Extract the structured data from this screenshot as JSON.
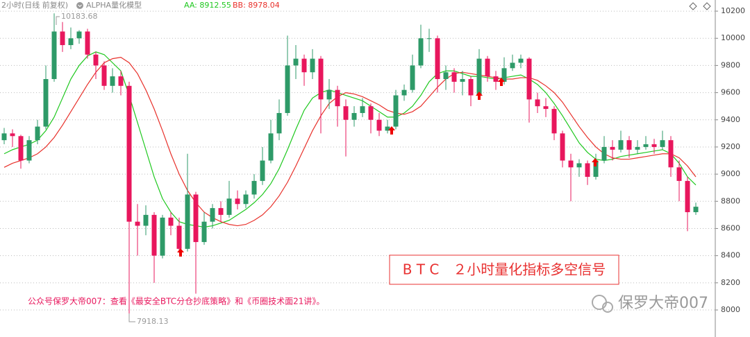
{
  "chart_data": {
    "type": "candlestick",
    "title": "2小时(日线 前复权)",
    "indicator": "ALPHA量化模型",
    "ylim": [
      7801,
      10282
    ],
    "yticks": [
      8000,
      8200,
      8400,
      8600,
      8800,
      9000,
      9200,
      9400,
      9600,
      9800,
      10000,
      10200
    ],
    "grid": true,
    "up_color": "#2e9a68",
    "down_color": "#e8175d",
    "open": [
      9250,
      9300,
      9280,
      9100,
      9250,
      9350,
      9700,
      10050,
      9950,
      10000,
      10050,
      9880,
      9800,
      9650,
      9720,
      9650,
      8650,
      8620,
      8700,
      8400,
      8680,
      8620,
      8450,
      8850,
      8500,
      8650,
      8750,
      8700,
      8820,
      8780,
      8850,
      8950,
      9100,
      9300,
      9450,
      9800,
      9850,
      9750,
      9850,
      9550,
      9620,
      9500,
      9400,
      9450,
      9500,
      9400,
      9320,
      9350,
      9580,
      9620,
      9800,
      10000,
      10000,
      9700,
      9750,
      9680,
      9700,
      9580,
      9850,
      9720,
      9680,
      9780,
      9820,
      9850,
      9550,
      9500,
      9480,
      9300,
      9100,
      9050,
      9080,
      8980,
      9100,
      9200,
      9180,
      9250,
      9180,
      9200,
      9220,
      9200,
      9250,
      9050,
      8950,
      8720
    ],
    "high": [
      9340,
      9330,
      9290,
      9280,
      9400,
      9800,
      10183.68,
      10120,
      10080,
      10060,
      10070,
      9900,
      9830,
      9780,
      9760,
      9680,
      8780,
      8770,
      8720,
      8700,
      8720,
      8680,
      9150,
      8870,
      8720,
      8780,
      8800,
      8950,
      8880,
      8880,
      9000,
      9200,
      9400,
      9550,
      10020,
      9950,
      9880,
      9920,
      9870,
      9700,
      9650,
      9550,
      9500,
      9560,
      9520,
      9450,
      9400,
      9620,
      9660,
      9880,
      10100,
      10070,
      10020,
      9800,
      9780,
      9760,
      9720,
      9920,
      9870,
      9760,
      9860,
      9880,
      9880,
      9860,
      9600,
      9560,
      9500,
      9320,
      9150,
      9110,
      9100,
      9150,
      9280,
      9250,
      9320,
      9280,
      9250,
      9280,
      9260,
      9320,
      9280,
      9100,
      8980,
      8790
    ],
    "low": [
      9220,
      9200,
      9040,
      9080,
      9220,
      9330,
      9680,
      9900,
      9920,
      9960,
      9850,
      9700,
      9620,
      9600,
      9580,
      7918.13,
      8400,
      8550,
      8200,
      8380,
      8550,
      8420,
      8430,
      8120,
      8480,
      8600,
      8650,
      8680,
      8740,
      8750,
      8820,
      8920,
      9080,
      9250,
      9430,
      9700,
      9650,
      9700,
      9300,
      9480,
      9350,
      9130,
      9350,
      9420,
      9300,
      9280,
      9300,
      9330,
      9540,
      9600,
      9780,
      9900,
      9600,
      9620,
      9600,
      9580,
      9500,
      9560,
      9680,
      9620,
      9660,
      9760,
      9780,
      9380,
      9450,
      9420,
      9250,
      9050,
      8800,
      8980,
      8920,
      8960,
      9080,
      9100,
      9160,
      9120,
      9150,
      9180,
      9150,
      9180,
      8980,
      8800,
      8580,
      8700
    ],
    "close": [
      9300,
      9280,
      9100,
      9250,
      9350,
      9700,
      10050,
      9950,
      10000,
      10050,
      9880,
      9800,
      9650,
      9720,
      9650,
      8650,
      8620,
      8700,
      8400,
      8680,
      8620,
      8450,
      8850,
      8500,
      8650,
      8750,
      8700,
      8820,
      8780,
      8850,
      8950,
      9100,
      9300,
      9450,
      9800,
      9850,
      9750,
      9850,
      9550,
      9620,
      9500,
      9400,
      9450,
      9500,
      9400,
      9320,
      9350,
      9580,
      9620,
      9800,
      10000,
      10000,
      9700,
      9750,
      9680,
      9700,
      9580,
      9850,
      9720,
      9680,
      9780,
      9820,
      9850,
      9550,
      9500,
      9480,
      9300,
      9100,
      9050,
      9080,
      8980,
      9100,
      9200,
      9180,
      9250,
      9180,
      9200,
      9220,
      9200,
      9250,
      9050,
      8950,
      8720,
      8760
    ],
    "series": [
      {
        "name": "AA: 8912.55",
        "color": "#1ec81e",
        "values": [
          9150,
          9180,
          9200,
          9220,
          9250,
          9320,
          9420,
          9560,
          9700,
          9800,
          9870,
          9900,
          9880,
          9820,
          9760,
          9580,
          9380,
          9180,
          8980,
          8820,
          8720,
          8650,
          8630,
          8620,
          8610,
          8620,
          8640,
          8660,
          8700,
          8740,
          8790,
          8850,
          8930,
          9040,
          9180,
          9330,
          9470,
          9560,
          9600,
          9620,
          9600,
          9580,
          9560,
          9540,
          9500,
          9460,
          9420,
          9420,
          9450,
          9500,
          9580,
          9680,
          9740,
          9760,
          9760,
          9740,
          9720,
          9720,
          9710,
          9700,
          9710,
          9720,
          9730,
          9700,
          9660,
          9600,
          9520,
          9430,
          9330,
          9230,
          9160,
          9110,
          9100,
          9110,
          9130,
          9140,
          9150,
          9160,
          9170,
          9180,
          9150,
          9080,
          8980,
          8920
        ]
      },
      {
        "name": "BB: 8978.04",
        "color": "#e8302a",
        "values": [
          9050,
          9080,
          9100,
          9120,
          9150,
          9200,
          9270,
          9360,
          9460,
          9560,
          9660,
          9750,
          9820,
          9850,
          9860,
          9820,
          9740,
          9620,
          9480,
          9320,
          9150,
          9000,
          8880,
          8790,
          8720,
          8680,
          8650,
          8630,
          8620,
          8630,
          8660,
          8700,
          8760,
          8840,
          8940,
          9060,
          9190,
          9320,
          9430,
          9520,
          9570,
          9600,
          9590,
          9570,
          9540,
          9510,
          9470,
          9450,
          9440,
          9460,
          9500,
          9570,
          9640,
          9700,
          9740,
          9750,
          9740,
          9730,
          9720,
          9710,
          9700,
          9700,
          9710,
          9710,
          9690,
          9650,
          9600,
          9530,
          9440,
          9350,
          9270,
          9200,
          9150,
          9120,
          9110,
          9110,
          9120,
          9130,
          9140,
          9150,
          9150,
          9120,
          9060,
          8980
        ]
      }
    ],
    "high_label": "10183.68",
    "low_label": "7918.13",
    "footer": "公众号保罗大帝007：查看《最安全BTC分仓抄底策略》和《币圈技术面21讲》。",
    "signal_title": "B T C　２小时量化指标多空信号",
    "watermark": "保罗大帝007"
  }
}
